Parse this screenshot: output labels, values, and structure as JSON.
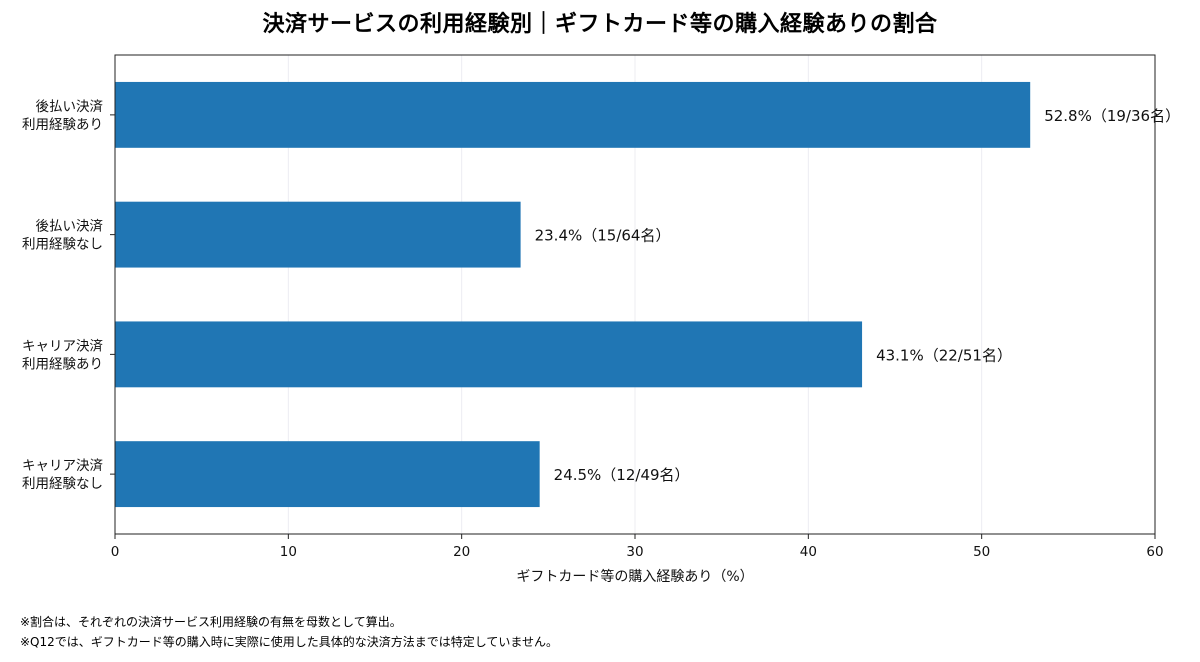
{
  "chart_data": {
    "type": "bar",
    "orientation": "horizontal",
    "title": "決済サービスの利用経験別｜ギフトカード等の購入経験ありの割合",
    "xlabel": "ギフトカード等の購入経験あり（%）",
    "ylabel": "",
    "xlim": [
      0,
      60
    ],
    "xticks": [
      0,
      10,
      20,
      30,
      40,
      50,
      60
    ],
    "grid": "vertical",
    "bar_color": "#2076b4",
    "categories": [
      [
        "後払い決済",
        "利用経験あり"
      ],
      [
        "後払い決済",
        "利用経験なし"
      ],
      [
        "キャリア決済",
        "利用経験あり"
      ],
      [
        "キャリア決済",
        "利用経験なし"
      ]
    ],
    "values": [
      52.8,
      23.4,
      43.1,
      24.5
    ],
    "data_labels": [
      "52.8%（19/36名）",
      "23.4%（15/64名）",
      "43.1%（22/51名）",
      "24.5%（12/49名）"
    ]
  },
  "notes": [
    "※割合は、それぞれの決済サービス利用経験の有無を母数として算出。",
    "※Q12では、ギフトカード等の購入時に実際に使用した具体的な決済方法までは特定していません。"
  ]
}
